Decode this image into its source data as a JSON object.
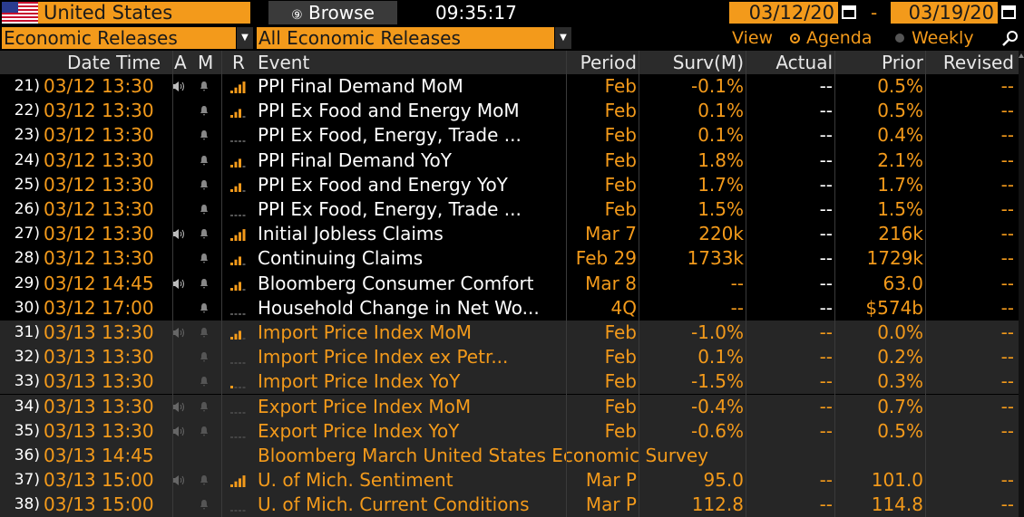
{
  "topbar": {
    "country": "United States",
    "browse_label": "Browse",
    "clock": "09:35:17",
    "date_from": "03/12/20",
    "date_sep": "-",
    "date_to": "03/19/20"
  },
  "filters": {
    "category": "Economic Releases",
    "subcategory": "All Economic Releases",
    "view_label": "View",
    "agenda_label": "Agenda",
    "weekly_label": "Weekly",
    "selected_view": "Agenda"
  },
  "columns": {
    "datetime": "Date Time",
    "a": "A",
    "m": "M",
    "r": "R",
    "event": "Event",
    "period": "Period",
    "surv": "Surv(M)",
    "actual": "Actual",
    "prior": "Prior",
    "revised": "Revised"
  },
  "colors": {
    "accent": "#f39a1b",
    "row_dim": "#262626",
    "header_bg": "#2b2b2b"
  },
  "rows": [
    {
      "num": "21)",
      "dt": "03/12 13:30",
      "event": "PPI Final Demand MoM",
      "period": "Feb",
      "surv": "-0.1%",
      "actual": "--",
      "prior": "0.5%",
      "revised": "--",
      "speaker": true,
      "rel": 4,
      "style": "white"
    },
    {
      "num": "22)",
      "dt": "03/12 13:30",
      "event": "PPI Ex Food and Energy MoM",
      "period": "Feb",
      "surv": "0.1%",
      "actual": "--",
      "prior": "0.5%",
      "revised": "--",
      "speaker": false,
      "rel": 3,
      "style": "white"
    },
    {
      "num": "23)",
      "dt": "03/12 13:30",
      "event": "PPI Ex Food, Energy, Trade ...",
      "period": "Feb",
      "surv": "0.1%",
      "actual": "--",
      "prior": "0.4%",
      "revised": "--",
      "speaker": false,
      "rel": 0,
      "style": "white"
    },
    {
      "num": "24)",
      "dt": "03/12 13:30",
      "event": "PPI Final Demand YoY",
      "period": "Feb",
      "surv": "1.8%",
      "actual": "--",
      "prior": "2.1%",
      "revised": "--",
      "speaker": false,
      "rel": 3,
      "style": "white"
    },
    {
      "num": "25)",
      "dt": "03/12 13:30",
      "event": "PPI Ex Food and Energy YoY",
      "period": "Feb",
      "surv": "1.7%",
      "actual": "--",
      "prior": "1.7%",
      "revised": "--",
      "speaker": false,
      "rel": 3,
      "style": "white"
    },
    {
      "num": "26)",
      "dt": "03/12 13:30",
      "event": "PPI Ex Food, Energy, Trade ...",
      "period": "Feb",
      "surv": "1.5%",
      "actual": "--",
      "prior": "1.5%",
      "revised": "--",
      "speaker": false,
      "rel": 0,
      "style": "white"
    },
    {
      "num": "27)",
      "dt": "03/12 13:30",
      "event": "Initial Jobless Claims",
      "period": "Mar 7",
      "surv": "220k",
      "actual": "--",
      "prior": "216k",
      "revised": "--",
      "speaker": true,
      "rel": 4,
      "style": "white"
    },
    {
      "num": "28)",
      "dt": "03/12 13:30",
      "event": "Continuing Claims",
      "period": "Feb 29",
      "surv": "1733k",
      "actual": "--",
      "prior": "1729k",
      "revised": "--",
      "speaker": false,
      "rel": 3,
      "style": "white"
    },
    {
      "num": "29)",
      "dt": "03/12 14:45",
      "event": "Bloomberg Consumer Comfort",
      "period": "Mar 8",
      "surv": "--",
      "actual": "--",
      "prior": "63.0",
      "revised": "--",
      "speaker": true,
      "rel": 3,
      "style": "white"
    },
    {
      "num": "30)",
      "dt": "03/12 17:00",
      "event": "Household Change in Net Wo...",
      "period": "4Q",
      "surv": "--",
      "actual": "--",
      "prior": "$574b",
      "revised": "--",
      "speaker": false,
      "rel": 0,
      "style": "white"
    },
    {
      "num": "31)",
      "dt": "03/13 13:30",
      "event": "Import Price Index MoM",
      "period": "Feb",
      "surv": "-1.0%",
      "actual": "--",
      "prior": "0.0%",
      "revised": "--",
      "speaker": true,
      "rel": 3,
      "style": "orange"
    },
    {
      "num": "32)",
      "dt": "03/13 13:30",
      "event": "Import Price Index ex Petr...",
      "period": "Feb",
      "surv": "0.1%",
      "actual": "--",
      "prior": "0.2%",
      "revised": "--",
      "speaker": false,
      "rel": 0,
      "style": "orange"
    },
    {
      "num": "33)",
      "dt": "03/13 13:30",
      "event": "Import Price Index YoY",
      "period": "Feb",
      "surv": "-1.5%",
      "actual": "--",
      "prior": "0.3%",
      "revised": "--",
      "speaker": false,
      "rel": 1,
      "style": "orange"
    },
    {
      "num": "34)",
      "dt": "03/13 13:30",
      "event": "Export Price Index MoM",
      "period": "Feb",
      "surv": "-0.4%",
      "actual": "--",
      "prior": "0.7%",
      "revised": "--",
      "speaker": true,
      "rel": 0,
      "style": "orange"
    },
    {
      "num": "35)",
      "dt": "03/13 13:30",
      "event": "Export Price Index YoY",
      "period": "Feb",
      "surv": "-0.6%",
      "actual": "--",
      "prior": "0.5%",
      "revised": "--",
      "speaker": true,
      "rel": 0,
      "style": "orange"
    },
    {
      "num": "36)",
      "dt": "03/13 14:45",
      "event": "Bloomberg March United States Economic Survey",
      "period": "",
      "surv": "",
      "actual": "",
      "prior": "",
      "revised": "",
      "speaker": false,
      "rel": -1,
      "style": "orange",
      "full": true
    },
    {
      "num": "37)",
      "dt": "03/13 15:00",
      "event": "U. of Mich. Sentiment",
      "period": "Mar P",
      "surv": "95.0",
      "actual": "--",
      "prior": "101.0",
      "revised": "--",
      "speaker": true,
      "rel": 4,
      "style": "orange"
    },
    {
      "num": "38)",
      "dt": "03/13 15:00",
      "event": "U. of Mich. Current Conditions",
      "period": "Mar P",
      "surv": "112.8",
      "actual": "--",
      "prior": "114.8",
      "revised": "--",
      "speaker": false,
      "rel": 0,
      "style": "orange"
    }
  ]
}
